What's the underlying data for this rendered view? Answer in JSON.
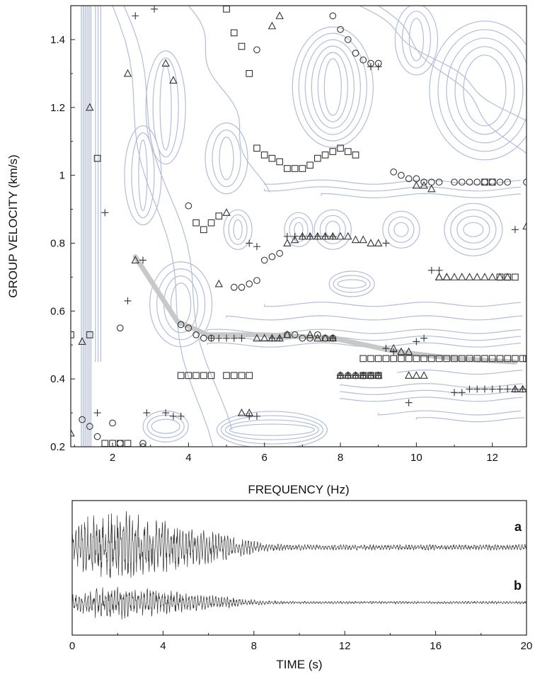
{
  "chart_data": [
    {
      "type": "scatter",
      "title": "",
      "xlabel": "FREQUENCY (Hz)",
      "ylabel": "GROUP VELOCITY (km/s)",
      "xlim": [
        0.9,
        12.9
      ],
      "ylim": [
        0.2,
        1.5
      ],
      "xticks": [
        2,
        4,
        6,
        8,
        10,
        12
      ],
      "yticks": [
        0.2,
        0.4,
        0.6,
        0.8,
        1.0,
        1.2,
        1.4
      ],
      "ytick_labels": [
        "0.2",
        "0.4",
        "0.6",
        "0.8",
        "1",
        "1.2",
        "1.4"
      ],
      "contour_color": "#b3bdd9",
      "highlight_color": "#c8c8c8",
      "highlight_path": [
        [
          2.6,
          0.76
        ],
        [
          3.7,
          0.57
        ],
        [
          4.5,
          0.53
        ],
        [
          6.0,
          0.53
        ],
        [
          7.8,
          0.52
        ],
        [
          9.5,
          0.48
        ],
        [
          11.0,
          0.46
        ],
        [
          12.6,
          0.45
        ]
      ],
      "series": [
        {
          "marker": "circle",
          "x": [
            1.2,
            1.4,
            1.6,
            2.0,
            2.2,
            2.8,
            4.0,
            5.2,
            5.4,
            5.6,
            5.8,
            6.0,
            6.2,
            6.4,
            3.8,
            4.0,
            4.2,
            4.4,
            4.6,
            6.6,
            6.8,
            7.0,
            7.2,
            7.4,
            7.6,
            7.8,
            8.0,
            8.2,
            8.4,
            8.6,
            8.8,
            9.0,
            5.8,
            7.8,
            8.0,
            8.2,
            8.4,
            8.6,
            8.8,
            9.0,
            9.4,
            9.6,
            9.8,
            10.0,
            10.2,
            10.4,
            10.6,
            11.0,
            11.2,
            11.4,
            11.6,
            11.8,
            12.0,
            12.2,
            12.4,
            12.9,
            2.2,
            2.8
          ],
          "y": [
            0.28,
            0.26,
            0.23,
            0.27,
            0.55,
            0.21,
            0.91,
            0.67,
            0.67,
            0.68,
            0.69,
            0.75,
            0.76,
            0.77,
            0.56,
            0.55,
            0.53,
            0.52,
            0.52,
            0.53,
            0.53,
            0.52,
            0.52,
            0.53,
            0.52,
            0.52,
            0.41,
            0.41,
            0.41,
            0.41,
            0.41,
            0.41,
            1.37,
            1.47,
            1.43,
            1.4,
            1.36,
            1.34,
            1.33,
            1.33,
            1.01,
            1.0,
            0.99,
            0.99,
            0.98,
            0.98,
            0.98,
            0.98,
            0.98,
            0.98,
            0.98,
            0.98,
            0.98,
            0.98,
            0.98,
            0.98,
            0.21,
            0.2
          ]
        },
        {
          "marker": "square",
          "x": [
            0.9,
            1.4,
            1.6,
            1.8,
            2.0,
            2.2,
            2.4,
            4.2,
            4.4,
            4.6,
            4.8,
            5.0,
            5.2,
            5.4,
            5.6,
            5.8,
            6.0,
            6.2,
            6.4,
            6.6,
            6.8,
            7.0,
            7.2,
            7.4,
            7.6,
            7.8,
            8.0,
            8.2,
            8.4,
            8.6,
            8.8,
            9.0,
            5.0,
            5.2,
            5.4,
            5.6,
            3.8,
            4.0,
            4.2,
            4.4,
            4.6,
            8.6,
            8.8,
            9.0,
            9.2,
            9.4,
            9.6,
            9.8,
            10.0,
            10.2,
            10.4,
            10.6,
            10.8,
            11.0,
            11.2,
            11.4,
            11.6,
            11.8,
            12.0,
            12.2,
            12.4,
            12.6,
            12.8,
            12.9,
            12.6,
            12.4,
            12.2,
            12.0,
            11.8
          ],
          "y": [
            0.53,
            0.53,
            1.05,
            0.21,
            0.21,
            0.21,
            0.21,
            0.86,
            0.84,
            0.86,
            0.88,
            1.49,
            1.42,
            1.38,
            1.3,
            1.08,
            1.06,
            1.05,
            1.04,
            1.02,
            1.02,
            1.02,
            1.03,
            1.05,
            1.06,
            1.07,
            1.08,
            1.07,
            1.06,
            0.41,
            0.41,
            0.41,
            0.41,
            0.41,
            0.41,
            0.41,
            0.41,
            0.41,
            0.41,
            0.41,
            0.41,
            0.46,
            0.46,
            0.46,
            0.46,
            0.46,
            0.46,
            0.46,
            0.46,
            0.46,
            0.46,
            0.46,
            0.46,
            0.46,
            0.46,
            0.46,
            0.46,
            0.46,
            0.46,
            0.46,
            0.46,
            0.46,
            0.46,
            0.46,
            0.7,
            0.7,
            0.7,
            0.98,
            0.98
          ]
        },
        {
          "marker": "triangle",
          "x": [
            0.9,
            1.2,
            1.4,
            2.4,
            2.6,
            3.4,
            3.6,
            4.8,
            5.0,
            6.2,
            6.4,
            6.6,
            6.8,
            7.0,
            7.2,
            7.4,
            7.6,
            7.8,
            8.0,
            8.2,
            8.4,
            8.6,
            8.8,
            9.0,
            5.4,
            5.6,
            5.8,
            6.0,
            6.2,
            6.4,
            6.6,
            7.2,
            7.4,
            7.6,
            7.8,
            8.0,
            8.2,
            8.4,
            8.6,
            8.8,
            9.0,
            9.4,
            9.6,
            9.8,
            10.0,
            10.2,
            10.4,
            10.6,
            10.8,
            11.0,
            11.2,
            11.4,
            11.6,
            11.8,
            12.0,
            12.2,
            12.4,
            12.9,
            9.8,
            10.0,
            10.2,
            10.6,
            10.8,
            12.8,
            12.6
          ],
          "y": [
            0.24,
            0.51,
            1.2,
            1.3,
            0.75,
            1.33,
            1.28,
            0.68,
            0.89,
            1.44,
            1.47,
            0.8,
            0.81,
            0.82,
            0.82,
            0.82,
            0.82,
            0.82,
            0.82,
            0.82,
            0.81,
            0.81,
            0.8,
            0.8,
            0.3,
            0.3,
            0.52,
            0.52,
            0.52,
            0.52,
            0.53,
            0.53,
            0.52,
            0.52,
            0.52,
            0.41,
            0.41,
            0.41,
            0.41,
            0.41,
            0.41,
            0.49,
            0.48,
            0.48,
            0.97,
            0.97,
            0.96,
            0.7,
            0.7,
            0.7,
            0.7,
            0.7,
            0.7,
            0.7,
            0.7,
            0.7,
            0.7,
            0.85,
            0.41,
            0.41,
            0.41,
            0.7,
            0.7,
            0.37,
            0.37
          ]
        },
        {
          "marker": "plus",
          "x": [
            1.6,
            1.8,
            2.6,
            2.8,
            3.1,
            2.4,
            2.9,
            3.4,
            3.6,
            3.8,
            4.6,
            4.8,
            5.0,
            5.4,
            5.2,
            5.6,
            5.8,
            6.6,
            6.8,
            7.0,
            7.2,
            7.4,
            7.6,
            7.8,
            8.0,
            8.2,
            8.4,
            8.6,
            8.8,
            9.0,
            9.2,
            9.4,
            10.0,
            10.2,
            10.4,
            10.6,
            11.0,
            11.2,
            11.4,
            11.6,
            11.8,
            12.0,
            12.2,
            12.4,
            12.6,
            12.8,
            9.8,
            9.2,
            6.2,
            6.4,
            7.8,
            8.0,
            8.2,
            8.4,
            8.6,
            8.8,
            9.0,
            12.6,
            5.6,
            5.8
          ],
          "y": [
            0.3,
            0.89,
            1.47,
            0.75,
            1.49,
            0.63,
            0.3,
            0.3,
            0.29,
            0.29,
            0.52,
            0.52,
            0.52,
            0.52,
            0.52,
            0.8,
            0.79,
            0.82,
            0.82,
            0.82,
            0.82,
            0.82,
            0.82,
            0.82,
            0.41,
            0.41,
            0.41,
            0.41,
            0.41,
            0.41,
            0.49,
            0.48,
            0.51,
            0.52,
            0.72,
            0.72,
            0.36,
            0.36,
            0.37,
            0.37,
            0.37,
            0.37,
            0.37,
            0.37,
            0.37,
            0.37,
            0.33,
            0.8,
            0.52,
            0.52,
            0.52,
            0.41,
            0.41,
            0.41,
            0.41,
            1.32,
            1.32,
            0.84,
            0.29,
            0.29
          ]
        }
      ]
    },
    {
      "type": "line",
      "title": "",
      "xlabel": "TIME (s)",
      "xlim": [
        0,
        20
      ],
      "xticks": [
        0,
        4,
        8,
        12,
        16,
        20
      ],
      "traces": [
        {
          "label": "a",
          "amplitude": 1.0
        },
        {
          "label": "b",
          "amplitude": 0.45
        }
      ]
    }
  ]
}
